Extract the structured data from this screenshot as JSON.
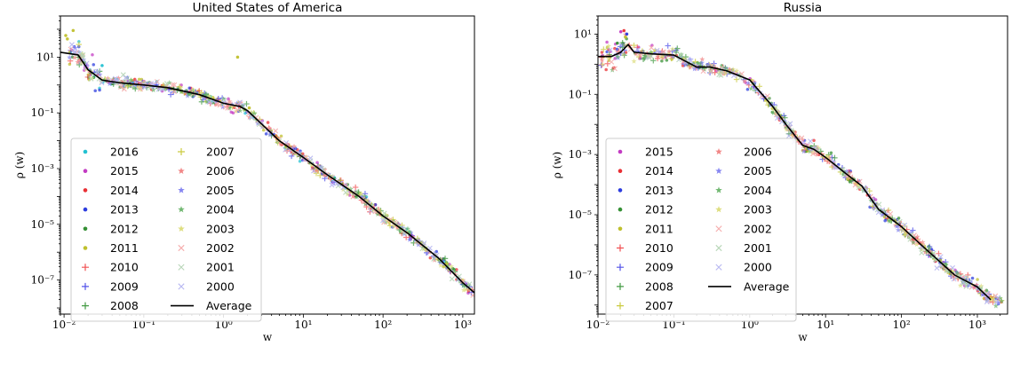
{
  "chart_data": [
    {
      "type": "scatter",
      "title": "United States of America",
      "xlabel": "w",
      "ylabel": "ρ (w)",
      "xscale": "log",
      "yscale": "log",
      "xlim": [
        0.009,
        1400
      ],
      "ylim": [
        6e-09,
        300
      ],
      "xtick_values": [
        0.01,
        0.1,
        1,
        10,
        100,
        1000
      ],
      "xtick_labels": [
        "10⁻²",
        "10⁻¹",
        "10⁰",
        "10¹",
        "10²",
        "10³"
      ],
      "ytick_values": [
        1e-07,
        1e-05,
        0.001,
        0.1,
        10
      ],
      "ytick_labels": [
        "10⁻⁷",
        "10⁻⁵",
        "10⁻³",
        "10⁻¹",
        "10¹"
      ],
      "grid": false,
      "legend_position": "lower-left",
      "legend_columns": 2,
      "series": [
        {
          "name": "2016",
          "marker": "dot",
          "color": "#17becf"
        },
        {
          "name": "2015",
          "marker": "dot",
          "color": "#c030c0"
        },
        {
          "name": "2014",
          "marker": "dot",
          "color": "#e8252a"
        },
        {
          "name": "2013",
          "marker": "dot",
          "color": "#2233dd"
        },
        {
          "name": "2012",
          "marker": "dot",
          "color": "#2a8a2a"
        },
        {
          "name": "2011",
          "marker": "dot",
          "color": "#bcbd22"
        },
        {
          "name": "2010",
          "marker": "plus",
          "color": "#f0484a"
        },
        {
          "name": "2009",
          "marker": "plus",
          "color": "#4a4ae8"
        },
        {
          "name": "2008",
          "marker": "plus",
          "color": "#3a963a"
        },
        {
          "name": "2007",
          "marker": "plus",
          "color": "#c8c836"
        },
        {
          "name": "2006",
          "marker": "star",
          "color": "#f08080"
        },
        {
          "name": "2005",
          "marker": "star",
          "color": "#8080f0"
        },
        {
          "name": "2004",
          "marker": "star",
          "color": "#6ab46a"
        },
        {
          "name": "2003",
          "marker": "star",
          "color": "#dcdc78"
        },
        {
          "name": "2002",
          "marker": "cross",
          "color": "#f4a8a8"
        },
        {
          "name": "2001",
          "marker": "cross",
          "color": "#b4d4b4"
        },
        {
          "name": "2000",
          "marker": "cross",
          "color": "#b4b4f0"
        },
        {
          "name": "Average",
          "marker": "line",
          "color": "#000000",
          "x": [
            0.009,
            0.015,
            0.02,
            0.03,
            0.05,
            0.1,
            0.2,
            0.5,
            1,
            1.6,
            2,
            3,
            5,
            10,
            20,
            50,
            100,
            200,
            500,
            1000,
            1400
          ],
          "y": [
            15,
            12,
            3.5,
            1.5,
            1.2,
            1.0,
            0.8,
            0.45,
            0.22,
            0.17,
            0.12,
            0.04,
            0.01,
            0.0025,
            0.0006,
            0.0001,
            2e-05,
            5e-06,
            6e-07,
            8e-08,
            3.5e-08
          ]
        }
      ]
    },
    {
      "type": "scatter",
      "title": "Russia",
      "xlabel": "w",
      "ylabel": "ρ (w)",
      "xscale": "log",
      "yscale": "log",
      "xlim": [
        0.01,
        2500
      ],
      "ylim": [
        5e-09,
        40
      ],
      "xtick_values": [
        0.01,
        0.1,
        1,
        10,
        100,
        1000
      ],
      "xtick_labels": [
        "10⁻²",
        "10⁻¹",
        "10⁰",
        "10¹",
        "10²",
        "10³"
      ],
      "ytick_values": [
        1e-07,
        1e-05,
        0.001,
        0.1,
        10
      ],
      "ytick_labels": [
        "10⁻⁷",
        "10⁻⁵",
        "10⁻³",
        "10⁻¹",
        "10¹"
      ],
      "grid": false,
      "legend_position": "lower-left",
      "legend_columns": 2,
      "series": [
        {
          "name": "2015",
          "marker": "dot",
          "color": "#c030c0"
        },
        {
          "name": "2014",
          "marker": "dot",
          "color": "#e8252a"
        },
        {
          "name": "2013",
          "marker": "dot",
          "color": "#2233dd"
        },
        {
          "name": "2012",
          "marker": "dot",
          "color": "#2a8a2a"
        },
        {
          "name": "2011",
          "marker": "dot",
          "color": "#bcbd22"
        },
        {
          "name": "2010",
          "marker": "plus",
          "color": "#f0484a"
        },
        {
          "name": "2009",
          "marker": "plus",
          "color": "#4a4ae8"
        },
        {
          "name": "2008",
          "marker": "plus",
          "color": "#3a963a"
        },
        {
          "name": "2007",
          "marker": "plus",
          "color": "#c8c836"
        },
        {
          "name": "2006",
          "marker": "star",
          "color": "#f08080"
        },
        {
          "name": "2005",
          "marker": "star",
          "color": "#8080f0"
        },
        {
          "name": "2004",
          "marker": "star",
          "color": "#6ab46a"
        },
        {
          "name": "2003",
          "marker": "star",
          "color": "#dcdc78"
        },
        {
          "name": "2002",
          "marker": "cross",
          "color": "#f4a8a8"
        },
        {
          "name": "2001",
          "marker": "cross",
          "color": "#b4d4b4"
        },
        {
          "name": "2000",
          "marker": "cross",
          "color": "#b4b4f0"
        },
        {
          "name": "Average",
          "marker": "line",
          "color": "#000000",
          "x": [
            0.01,
            0.015,
            0.02,
            0.025,
            0.03,
            0.05,
            0.1,
            0.2,
            0.3,
            0.5,
            1,
            2,
            3,
            5,
            7,
            10,
            20,
            30,
            50,
            100,
            200,
            500,
            1000,
            1500
          ],
          "y": [
            1.8,
            1.8,
            2.5,
            4.5,
            2.5,
            2.2,
            2.0,
            0.8,
            0.8,
            0.6,
            0.3,
            0.04,
            0.01,
            0.002,
            0.0015,
            0.0008,
            0.0002,
            9e-05,
            1.5e-05,
            4e-06,
            8e-07,
            1e-07,
            4e-08,
            1.5e-08
          ]
        }
      ]
    }
  ]
}
